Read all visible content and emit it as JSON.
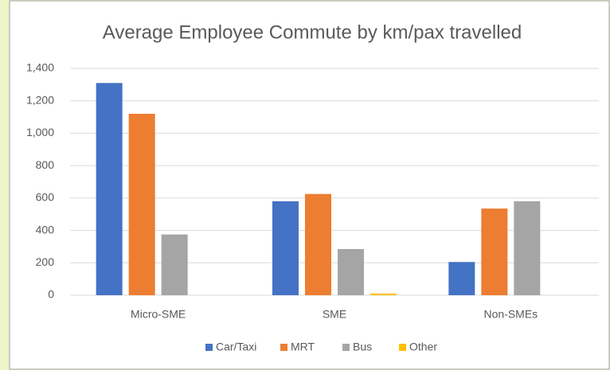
{
  "chart_data": {
    "type": "bar",
    "title": "Average Employee Commute by km/pax travelled",
    "categories": [
      "Micro-SME",
      "SME",
      "Non-SMEs"
    ],
    "series": [
      {
        "name": "Car/Taxi",
        "color": "#4472c4",
        "values": [
          1310,
          580,
          205
        ]
      },
      {
        "name": "MRT",
        "color": "#ed7d31",
        "values": [
          1120,
          625,
          535
        ]
      },
      {
        "name": "Bus",
        "color": "#a5a5a5",
        "values": [
          375,
          285,
          580
        ]
      },
      {
        "name": "Other",
        "color": "#ffc000",
        "values": [
          0,
          10,
          0
        ]
      }
    ],
    "ylim": [
      0,
      1400
    ],
    "yticks": [
      0,
      200,
      400,
      600,
      800,
      1000,
      1200,
      {
        "value": 1000,
        "label": "1,000"
      },
      {
        "value": 1200,
        "label": "1,200"
      },
      {
        "value": 1400,
        "label": "1,400"
      }
    ],
    "grid": true,
    "legend": "bottom"
  }
}
